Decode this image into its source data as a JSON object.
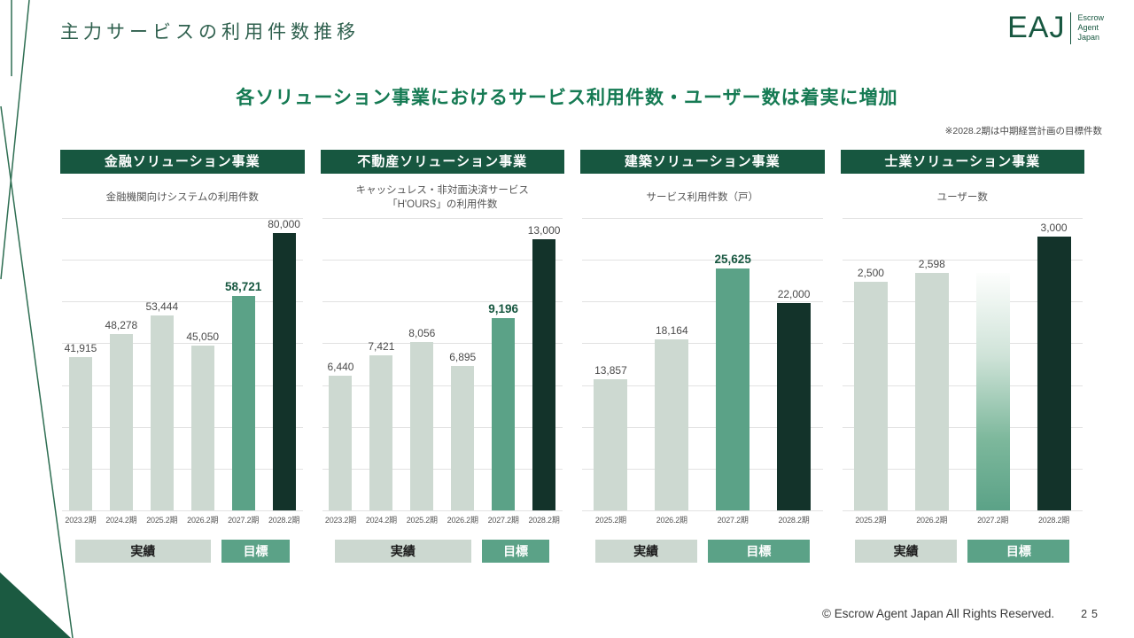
{
  "page": {
    "title": "主力サービスの利用件数推移",
    "subtitle": "各ソリューション事業におけるサービス利用件数・ユーザー数は着実に増加",
    "note": "※2028.2期は中期経営計画の目標件数",
    "copyright": "© Escrow Agent Japan All Rights Reserved.",
    "page_number": "25"
  },
  "logo": {
    "text": "EAJ",
    "caption_lines": [
      "Escrow",
      "Agent",
      "Japan"
    ]
  },
  "legend": {
    "actual": "実績",
    "target": "目標"
  },
  "colors": {
    "banner_green": "#175740",
    "bar_actual": "#cdd9d1",
    "bar_highlight": "#5ba287",
    "bar_target": "#13332a",
    "accent_text": "#157a53"
  },
  "chart_data": [
    {
      "type": "bar",
      "header": "金融ソリューション事業",
      "title_lines": [
        "金融機関向けシステムの利用件数"
      ],
      "categories": [
        "2023.2期",
        "2024.2期",
        "2025.2期",
        "2026.2期",
        "2027.2期",
        "2028.2期"
      ],
      "values": [
        41915,
        48278,
        53444,
        45050,
        58721,
        80000
      ],
      "labels": [
        "41,915",
        "48,278",
        "53,444",
        "45,050",
        "58,721",
        "80,000"
      ],
      "styles": [
        "actual",
        "actual",
        "actual",
        "actual",
        "highlight",
        "target"
      ],
      "ymax": 80000
    },
    {
      "type": "bar",
      "header": "不動産ソリューション事業",
      "title_lines": [
        "キャッシュレス・非対面決済サービス",
        "「H'OURS」の利用件数"
      ],
      "categories": [
        "2023.2期",
        "2024.2期",
        "2025.2期",
        "2026.2期",
        "2027.2期",
        "2028.2期"
      ],
      "values": [
        6440,
        7421,
        8056,
        6895,
        9196,
        13000
      ],
      "labels": [
        "6,440",
        "7,421",
        "8,056",
        "6,895",
        "9,196",
        "13,000"
      ],
      "styles": [
        "actual",
        "actual",
        "actual",
        "actual",
        "highlight",
        "target"
      ],
      "ymax": 14000
    },
    {
      "type": "bar",
      "header": "建築ソリューション事業",
      "title_lines": [
        "サービス利用件数（戸）"
      ],
      "categories": [
        "2025.2期",
        "2026.2期",
        "2027.2期",
        "2028.2期"
      ],
      "values": [
        13857,
        18164,
        25625,
        22000
      ],
      "labels": [
        "13,857",
        "18,164",
        "25,625",
        "22,000"
      ],
      "styles": [
        "actual",
        "actual",
        "highlight",
        "target"
      ],
      "ymax": 31000
    },
    {
      "type": "bar",
      "header": "士業ソリューション事業",
      "title_lines": [
        "ユーザー数"
      ],
      "categories": [
        "2025.2期",
        "2026.2期",
        "2027.2期",
        "2028.2期"
      ],
      "values": [
        2500,
        2598,
        2600,
        3000
      ],
      "labels": [
        "2,500",
        "2,598",
        "",
        "3,000"
      ],
      "styles": [
        "actual",
        "actual",
        "gradient",
        "target"
      ],
      "ymax": 3200
    }
  ]
}
